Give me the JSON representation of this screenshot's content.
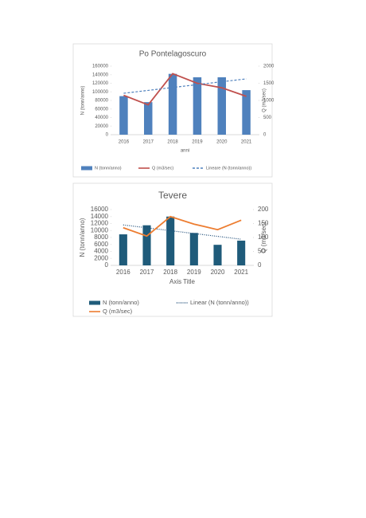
{
  "chart_data": [
    {
      "type": "bar",
      "title": "Po Pontelagoscuro",
      "x_label": "anni",
      "y_label": "N (tonn/anno)",
      "y2_label": "Q (m3/sec)",
      "categories": [
        "2016",
        "2017",
        "2018",
        "2019",
        "2020",
        "2021"
      ],
      "series": [
        {
          "name": "N (tonn/anno)",
          "type": "bar",
          "color": "#4f81bd",
          "values": [
            90000,
            76000,
            142000,
            134000,
            134000,
            104000
          ]
        },
        {
          "name": "Q (m3/sec)",
          "type": "line",
          "axis": "y2",
          "color": "#c0504d",
          "values": [
            1150,
            870,
            1780,
            1500,
            1370,
            1120
          ]
        },
        {
          "name": "Lineare (N (tonn/anno))",
          "type": "line",
          "style": "dashed",
          "color": "#4f81bd",
          "values": [
            96700,
            103400,
            110200,
            116900,
            123600,
            130300
          ]
        }
      ],
      "ylim": [
        0,
        160000
      ],
      "yticks": [
        0,
        20000,
        40000,
        60000,
        80000,
        100000,
        120000,
        140000,
        160000
      ],
      "y2lim": [
        0,
        2000
      ],
      "y2ticks": [
        0,
        500,
        1000,
        1500,
        2000
      ]
    },
    {
      "type": "bar",
      "title": "Tevere",
      "x_label": "Axis Title",
      "y_label": "N (tonn/anno)",
      "y2_label": "Q (m3/sec)",
      "categories": [
        "2016",
        "2017",
        "2018",
        "2019",
        "2020",
        "2021"
      ],
      "series": [
        {
          "name": "N (tonn/anno)",
          "type": "bar",
          "color": "#1f5b7a",
          "values": [
            8900,
            11500,
            14000,
            9300,
            5900,
            7100
          ]
        },
        {
          "name": "Linear (N (tonn/anno))",
          "type": "line",
          "style": "dotted",
          "color": "#1f4e79",
          "values": [
            11600,
            10780,
            9960,
            9140,
            8320,
            7500
          ]
        },
        {
          "name": "Q (m3/sec)",
          "type": "line",
          "axis": "y2",
          "color": "#ed7d31",
          "values": [
            135,
            105,
            175,
            148,
            128,
            162
          ]
        }
      ],
      "ylim": [
        0,
        16000
      ],
      "yticks": [
        0,
        2000,
        4000,
        6000,
        8000,
        10000,
        12000,
        14000,
        16000
      ],
      "y2lim": [
        0,
        200
      ],
      "y2ticks": [
        0,
        50,
        100,
        150,
        200
      ]
    }
  ]
}
